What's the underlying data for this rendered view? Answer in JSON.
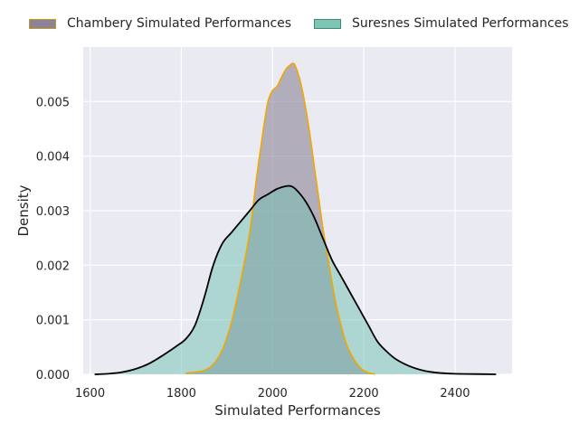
{
  "chart_data": {
    "type": "area",
    "xlabel": "Simulated Performances",
    "ylabel": "Density",
    "xlim": [
      1585,
      2525
    ],
    "ylim": [
      0,
      0.006
    ],
    "xticks": [
      1600,
      1800,
      2000,
      2200,
      2400
    ],
    "xtick_labels": [
      "1600",
      "1800",
      "2000",
      "2200",
      "2400"
    ],
    "yticks": [
      0,
      0.001,
      0.002,
      0.003,
      0.004,
      0.005
    ],
    "ytick_labels": [
      "0.000",
      "0.001",
      "0.002",
      "0.003",
      "0.004",
      "0.005"
    ],
    "grid": true,
    "legend_position": "top",
    "series": [
      {
        "name": "Chambery Simulated Performances",
        "fill_color": "#8c8496",
        "line_color": "#f0a800",
        "x": [
          1810,
          1830,
          1850,
          1870,
          1890,
          1910,
          1930,
          1950,
          1965,
          1980,
          1990,
          2000,
          2010,
          2020,
          2030,
          2040,
          2045,
          2050,
          2060,
          2070,
          2080,
          2090,
          2100,
          2110,
          2120,
          2130,
          2140,
          2150,
          2160,
          2170,
          2180,
          2190,
          2200,
          2210,
          2220,
          2225
        ],
        "y": [
          2e-05,
          4e-05,
          7e-05,
          0.00018,
          0.00045,
          0.00095,
          0.0017,
          0.0026,
          0.0036,
          0.0045,
          0.005,
          0.0052,
          0.00528,
          0.00545,
          0.0056,
          0.00568,
          0.0057,
          0.00565,
          0.0054,
          0.005,
          0.0045,
          0.0039,
          0.0033,
          0.0027,
          0.0022,
          0.0017,
          0.00125,
          0.0009,
          0.0006,
          0.0004,
          0.00025,
          0.00014,
          7e-05,
          3e-05,
          1e-05,
          0.0
        ]
      },
      {
        "name": "Suresnes Simulated Performances",
        "fill_color": "#6fc0b0",
        "line_color": "#000000",
        "x": [
          1610,
          1640,
          1670,
          1700,
          1730,
          1760,
          1790,
          1810,
          1830,
          1850,
          1870,
          1890,
          1910,
          1930,
          1950,
          1970,
          1990,
          2010,
          2030,
          2040,
          2050,
          2070,
          2090,
          2110,
          2130,
          2150,
          2170,
          2190,
          2210,
          2230,
          2250,
          2270,
          2300,
          2330,
          2360,
          2400,
          2440,
          2490
        ],
        "y": [
          0.0,
          1e-05,
          4e-05,
          0.0001,
          0.0002,
          0.00035,
          0.00052,
          0.00065,
          0.0009,
          0.0014,
          0.002,
          0.0024,
          0.0026,
          0.0028,
          0.003,
          0.0032,
          0.0033,
          0.0034,
          0.00345,
          0.00345,
          0.0034,
          0.0032,
          0.0029,
          0.0025,
          0.0021,
          0.0018,
          0.0015,
          0.0012,
          0.0009,
          0.0006,
          0.00042,
          0.00028,
          0.00015,
          7e-05,
          3e-05,
          1e-05,
          5e-06,
          0.0
        ]
      }
    ]
  }
}
